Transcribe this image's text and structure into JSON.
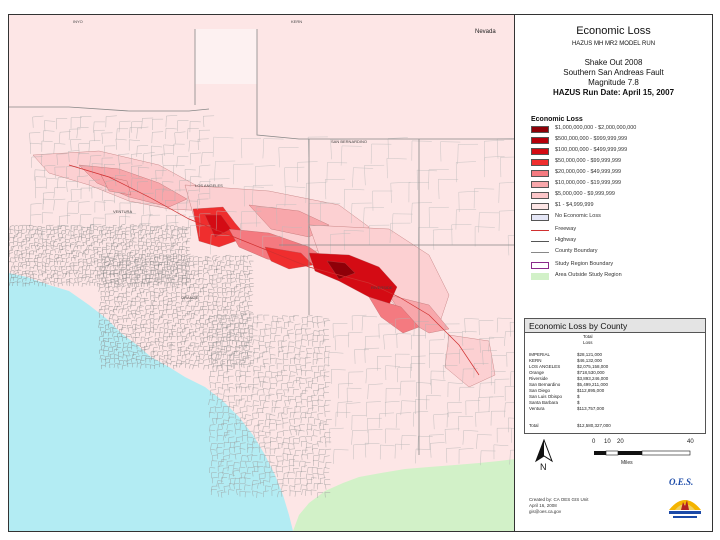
{
  "map": {
    "labels": {
      "north_top": "INYO",
      "north_mid": "KERN",
      "nevada": "Nevada",
      "ventura": "VENTURA",
      "los_angeles": "LOS ANGELES",
      "san_bernardino": "SAN BERNARDINO",
      "riverside": "RIVERSIDE",
      "orange": "ORANGE"
    },
    "colors": {
      "ocean": "#b3ecf3",
      "land_outside": "#d2f1c8",
      "land_base": "#fde6e6",
      "land_very_low": "#fcd0d2",
      "land_low": "#f8a7ab",
      "land_mid": "#f47a80",
      "land_high": "#ef2e2e",
      "land_very_high": "#d40b14",
      "land_extreme": "#8e0008",
      "boundary": "#999999",
      "fault": "#d03030"
    }
  },
  "title": {
    "main": "Economic Loss",
    "scenario_code": "HAZUS MH MR2 MODEL RUN",
    "event": "Shake Out 2008",
    "fault": "Southern San Andreas Fault",
    "magnitude": "Magnitude 7.8",
    "run_date": "HAZUS Run Date: April 15, 2007"
  },
  "legend": {
    "heading": "Economic Loss",
    "classes": [
      {
        "label": "$1,000,000,000 - $2,000,000,000",
        "color": "#8e0008"
      },
      {
        "label": "$500,000,000 - $999,999,999",
        "color": "#b5000b"
      },
      {
        "label": "$100,000,000 - $499,999,999",
        "color": "#d40b14"
      },
      {
        "label": "$50,000,000 - $99,999,999",
        "color": "#ef2e2e"
      },
      {
        "label": "$20,000,000 - $49,999,999",
        "color": "#f47a80"
      },
      {
        "label": "$10,000,000 - $19,999,999",
        "color": "#f8a7ab"
      },
      {
        "label": "$5,000,000 - $9,999,999",
        "color": "#fcc6c9"
      },
      {
        "label": "$1 - $4,999,999",
        "color": "#fde6e6"
      },
      {
        "label": "No Economic Loss",
        "color": "#e4e6f6"
      }
    ],
    "lines": [
      {
        "label": "Freeway",
        "color": "#d03030"
      },
      {
        "label": "Highway",
        "color": "#555555"
      },
      {
        "label": "County Boundary",
        "color": "#888888"
      }
    ],
    "areas": [
      {
        "label": "Study Region Boundary",
        "color": "#ffffff",
        "border": "#8a2a8a"
      },
      {
        "label": "Area Outside Study Region",
        "color": "#d2f1c8",
        "border": "#d2f1c8"
      }
    ]
  },
  "county_loss": {
    "title": "Economic Loss by County",
    "col_header_1": "Total",
    "col_header_2": "Loss",
    "rows": [
      {
        "county": "IMPERIAL",
        "value": "$28,121,000"
      },
      {
        "county": "KERN",
        "value": "$46,132,000"
      },
      {
        "county": "LOS ANGELES",
        "value": "$2,075,158,000"
      },
      {
        "county": "Orange",
        "value": "$718,530,000"
      },
      {
        "county": "Riverside",
        "value": "$3,893,246,000"
      },
      {
        "county": "San Bernardino",
        "value": "$5,499,211,000"
      },
      {
        "county": "San Diego",
        "value": "$112,895,000"
      },
      {
        "county": "San Luis Obispo",
        "value": "$"
      },
      {
        "county": "Santa Barbara",
        "value": "$"
      },
      {
        "county": "Ventura",
        "value": "$113,757,000"
      }
    ],
    "total_label": "Total",
    "total_value": "$12,580,327,000"
  },
  "scale_bar": {
    "ticks": [
      "0",
      "10",
      "20",
      "40"
    ],
    "unit": "Miles"
  },
  "north_arrow": {
    "letter": "N"
  },
  "credits": {
    "line1": "Created by: CA OES GIS Unit",
    "line2": "April 16, 2008",
    "line3": "gis@oes.ca.gov"
  },
  "logo": {
    "text": "O.E.S."
  }
}
